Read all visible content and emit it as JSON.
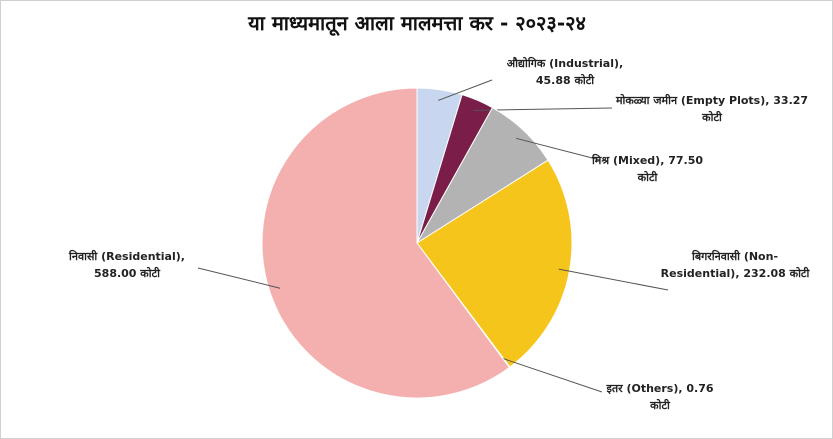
{
  "chart_data": {
    "type": "pie",
    "title": "या माध्यमातून आला मालमत्ता कर - २०२३-२४",
    "categories": [
      "औद्योगिक (Industrial),",
      "मोकळ्या जमीन (Empty Plots),",
      "मिश्र (Mixed),",
      "बिगरनिवासी (Non-Residential),",
      "इतर (Others),",
      "निवासी (Residential),"
    ],
    "values": [
      45.88,
      33.27,
      77.5,
      232.08,
      0.76,
      588.0
    ],
    "value_labels": [
      "45.88 कोटी",
      "33.27 कोटी",
      "77.50 कोटी",
      "232.08 कोटी",
      "0.76 कोटी",
      "588.00 कोटी"
    ],
    "colors": [
      "#c9d6f0",
      "#7a1d48",
      "#b3b3b3",
      "#f6c51c",
      "#5b9bd5",
      "#f4afaf"
    ]
  }
}
